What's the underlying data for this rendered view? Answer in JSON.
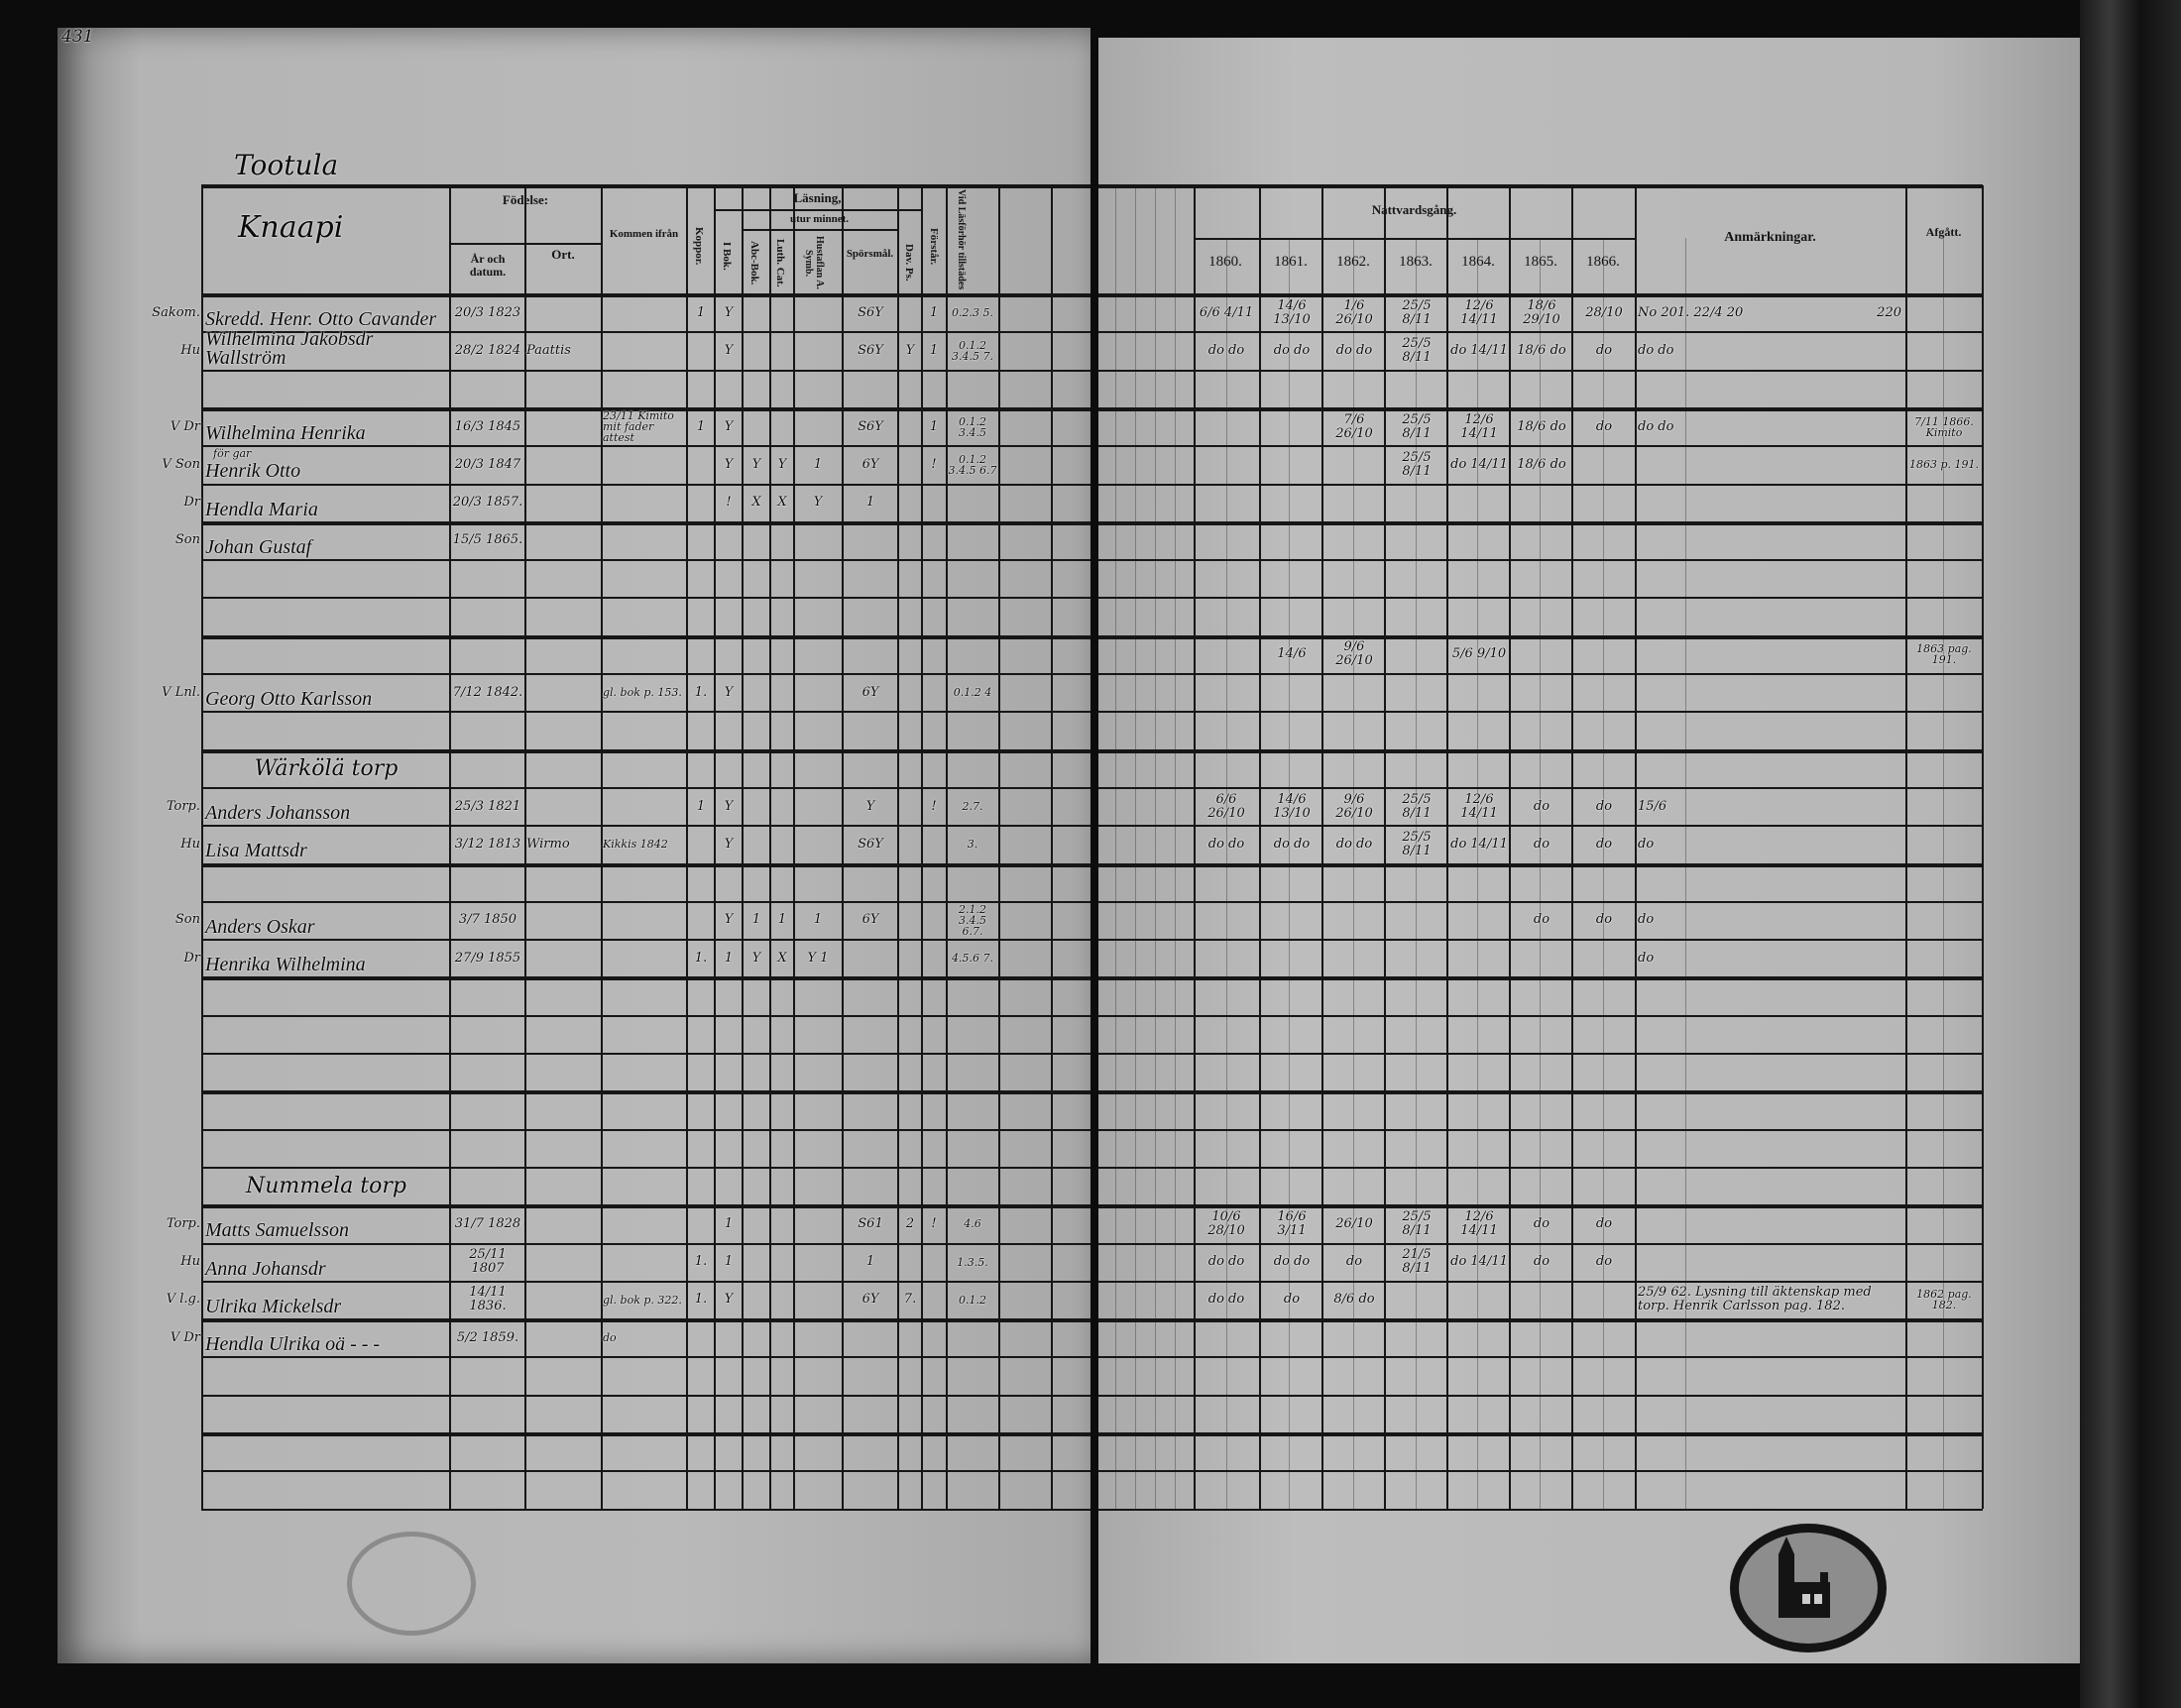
{
  "page_number": "431",
  "place_title": "Tootula",
  "farm_name": "Knaapi",
  "left_headers": {
    "birth": "Födelse:",
    "year_date": "År och datum.",
    "place": "Ort.",
    "came_from": "Kommen ifrån",
    "smallpox": "Koppor.",
    "in_book": "I Bok.",
    "reading": "Läsning,",
    "by_heart": "utur minnet.",
    "abc_book": "Abc-Bok.",
    "luth_cat": "Luth. Cat.",
    "hustaflan": "Hustaflan A. Symb.",
    "questions": "Spörsmål.",
    "dav_ps": "Dav. Ps.",
    "understands": "Förstår.",
    "attended": "Vid Läsförhör tillstädes"
  },
  "right_headers": {
    "communion": "Nattvardsgång.",
    "years": [
      "1860.",
      "1861.",
      "1862.",
      "1863.",
      "1864.",
      "1865.",
      "1866."
    ],
    "remarks": "Anmärkningar.",
    "departed": "Afgått."
  },
  "rows": [
    {
      "prefix": "Sakom.",
      "name": "Skredd. Henr. Otto Cavander",
      "birth": "20/3 1823",
      "koppor": "1",
      "ibok": "Y",
      "spors": "S6Y",
      "forstar": "1",
      "vid": "0.2.3 5.",
      "communion": [
        "6/6 4/11",
        "14/6 13/10",
        "1/6 26/10",
        "25/5 8/11",
        "12/6 14/11",
        "18/6 29/10",
        "28/10"
      ],
      "anm": "No 201. 22/4 20",
      "anm_note": "220"
    },
    {
      "prefix": "Hu",
      "name": "Wilhelmina Jakobsdr Wallström",
      "birth": "28/2 1824",
      "ort": "Paattis",
      "ibok": "Y",
      "spors": "S6Y",
      "dav": "Y",
      "forstar": "1",
      "vid": "0.1.2 3.4.5 7.",
      "communion": [
        "do do",
        "do do",
        "do do",
        "25/5 8/11",
        "do 14/11",
        "18/6 do",
        "do"
      ],
      "anm": "do do"
    },
    {},
    {
      "prefix": "V Dr",
      "name": "Wilhelmina Henrika",
      "birth": "16/3 1845",
      "kommen": "23/11 Kimito mit fader attest",
      "koppor": "1",
      "ibok": "Y",
      "spors": "S6Y",
      "forstar": "1",
      "vid": "0.1.2 3.4.5",
      "communion": [
        "",
        "",
        "7/6 26/10",
        "25/5 8/11",
        "12/6 14/11",
        "18/6 do",
        "do"
      ],
      "anm": "do do",
      "afgatt": "7/11 1866. Kimito"
    },
    {
      "prefix": "V Son",
      "above": "för gar",
      "name": "Henrik Otto",
      "birth": "20/3 1847",
      "ibok": "Y",
      "abc": "Y",
      "luth": "Y",
      "husf": "1",
      "spors": "6Y",
      "forstar": "!",
      "vid": "0.1.2 3.4.5 6.7",
      "communion": [
        "",
        "",
        "",
        "25/5 8/11",
        "do 14/11",
        "18/6 do",
        ""
      ],
      "afgatt": "1863 p. 191."
    },
    {
      "prefix": "Dr",
      "name": "Hendla Maria",
      "birth": "20/3 1857.",
      "ibok": "!",
      "abc": "X",
      "luth": "X",
      "husf": "Y",
      "spors": "1"
    },
    {
      "prefix": "Son",
      "name": "Johan Gustaf",
      "birth": "15/5 1865."
    },
    {},
    {},
    {
      "communion": [
        "",
        "14/6",
        "9/6 26/10",
        "",
        "5/6 9/10",
        "",
        ""
      ],
      "afgatt": "1863 pag. 191."
    },
    {
      "prefix": "V Lnl.",
      "name": "Georg Otto Karlsson",
      "birth": "7/12 1842.",
      "kommen": "gl. bok p. 153.",
      "koppor": "1.",
      "ibok": "Y",
      "spors": "6Y",
      "vid": "0.1.2 4"
    },
    {},
    {
      "section": "Wärkölä torp"
    },
    {
      "prefix": "Torp.",
      "name": "Anders Johansson",
      "birth": "25/3 1821",
      "koppor": "1",
      "ibok": "Y",
      "spors": "Y",
      "forstar": "!",
      "vid": "2.7.",
      "communion": [
        "6/6 26/10",
        "14/6 13/10",
        "9/6 26/10",
        "25/5 8/11",
        "12/6 14/11",
        "do",
        "do"
      ],
      "anm": "15/6"
    },
    {
      "prefix": "Hu",
      "name": "Lisa Mattsdr",
      "birth": "3/12 1813",
      "ort": "Wirmo",
      "kommen": "Kikkis 1842",
      "ibok": "Y",
      "spors": "S6Y",
      "vid": "3.",
      "communion": [
        "do do",
        "do do",
        "do do",
        "25/5 8/11",
        "do 14/11",
        "do",
        "do"
      ],
      "anm": "do"
    },
    {},
    {
      "prefix": "Son",
      "name": "Anders Oskar",
      "birth": "3/7 1850",
      "ibok": "Y",
      "abc": "1",
      "luth": "1",
      "husf": "1",
      "spors": "6Y",
      "vid": "2.1.2 3.4.5 6.7.",
      "communion": [
        "",
        "",
        "",
        "",
        "",
        "do",
        "do"
      ],
      "anm": "do"
    },
    {
      "prefix": "Dr",
      "name": "Henrika Wilhelmina",
      "birth": "27/9 1855",
      "koppor": "1.",
      "ibok": "1",
      "abc": "Y",
      "luth": "X",
      "husf": "Y 1",
      "vid": "4.5.6 7.",
      "anm": "do"
    },
    {},
    {},
    {},
    {},
    {},
    {
      "section": "Nummela torp"
    },
    {
      "prefix": "Torp.",
      "name": "Matts Samuelsson",
      "birth": "31/7 1828",
      "ibok": "1",
      "spors": "S61",
      "dav": "2",
      "forstar": "!",
      "vid": "4.6",
      "communion": [
        "10/6 28/10",
        "16/6 3/11",
        "26/10",
        "25/5 8/11",
        "12/6 14/11",
        "do",
        "do"
      ]
    },
    {
      "prefix": "Hu",
      "name": "Anna Johansdr",
      "birth": "25/11 1807",
      "koppor": "1.",
      "ibok": "1",
      "spors": "1",
      "vid": "1.3.5.",
      "communion": [
        "do do",
        "do do",
        "do",
        "21/5 8/11",
        "do 14/11",
        "do",
        "do"
      ]
    },
    {
      "prefix": "V l.g.",
      "name": "Ulrika Mickelsdr",
      "birth": "14/11 1836.",
      "kommen": "gl. bok p. 322.",
      "koppor": "1.",
      "ibok": "Y",
      "spors": "6Y",
      "dav": "7.",
      "vid": "0.1.2",
      "communion": [
        "do do",
        "do",
        "8/6 do",
        "",
        "",
        "",
        ""
      ],
      "anm": "25/9 62. Lysning till äktenskap med torp. Henrik Carlsson pag. 182.",
      "afgatt": "1862 pag. 182."
    },
    {
      "prefix": "V Dr",
      "name": "Hendla Ulrika oä - - -",
      "birth": "5/2 1859.",
      "kommen": "do"
    },
    {},
    {},
    {},
    {}
  ],
  "colors": {
    "background": "#0c0c0c",
    "paper": "#b8b8b8",
    "ink": "#111111"
  }
}
